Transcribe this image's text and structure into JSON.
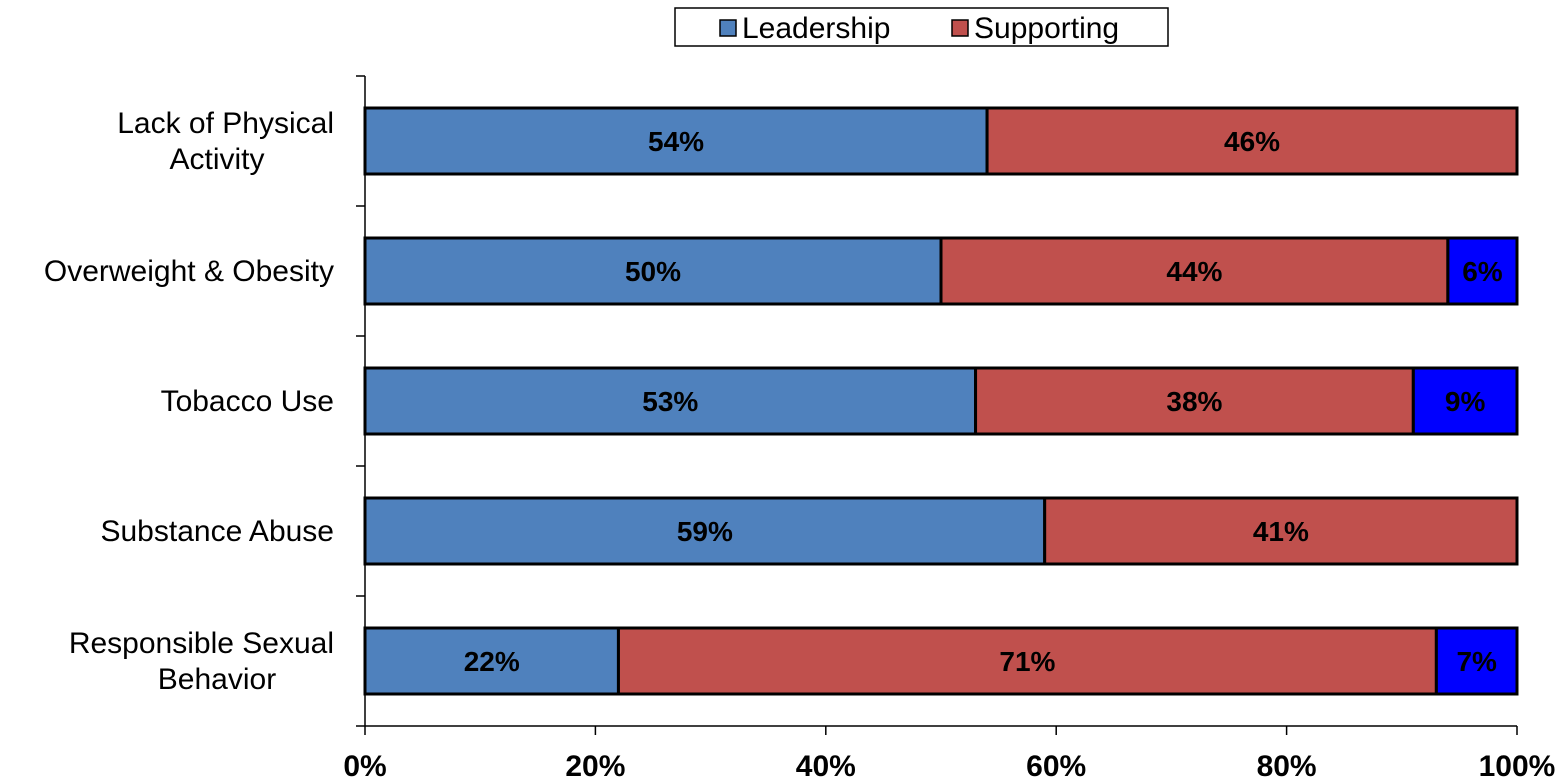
{
  "chart_data": {
    "type": "bar",
    "orientation": "horizontal",
    "stacked": true,
    "categories": [
      [
        "Lack of Physical",
        "Activity"
      ],
      [
        "Overweight & Obesity"
      ],
      [
        "Tobacco Use"
      ],
      [
        "Substance Abuse"
      ],
      [
        "Responsible Sexual",
        "Behavior"
      ]
    ],
    "series": [
      {
        "name": "Leadership",
        "color": "#4F81BD",
        "values": [
          54,
          50,
          53,
          59,
          22
        ]
      },
      {
        "name": "Supporting",
        "color": "#C0504D",
        "values": [
          46,
          44,
          38,
          41,
          71
        ]
      },
      {
        "color": "#0000FF",
        "values": [
          0,
          6,
          9,
          0,
          7
        ]
      }
    ],
    "data_labels": [
      [
        "54%",
        "50%",
        "53%",
        "59%",
        "22%"
      ],
      [
        "46%",
        "44%",
        "38%",
        "41%",
        "71%"
      ],
      [
        "",
        "6%",
        "9%",
        "",
        "7%"
      ]
    ],
    "x_ticks": [
      "0%",
      "20%",
      "40%",
      "60%",
      "80%",
      "100%"
    ],
    "xlim": [
      0,
      100
    ],
    "legend_position": "top-center",
    "grid": false
  }
}
